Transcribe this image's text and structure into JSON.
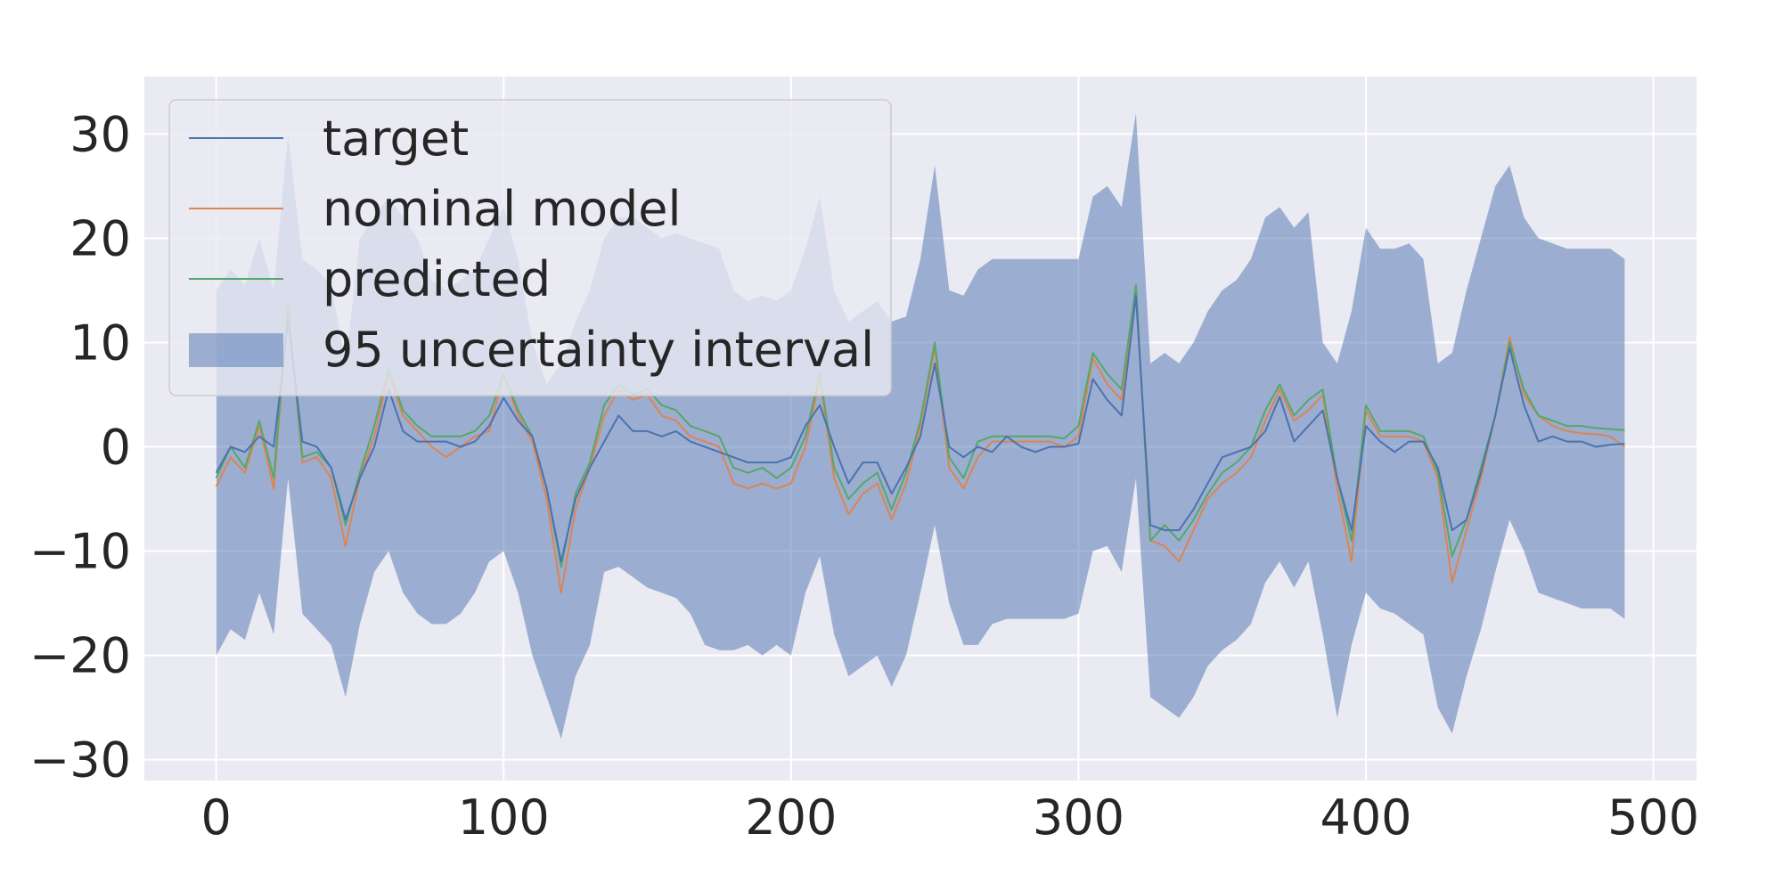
{
  "chart_data": {
    "type": "line",
    "title": "",
    "xlabel": "",
    "ylabel": "",
    "xlim": [
      -25,
      515
    ],
    "ylim": [
      -32,
      35.5
    ],
    "xticks": [
      0,
      100,
      200,
      300,
      400,
      500
    ],
    "yticks": [
      30,
      20,
      10,
      0,
      -10,
      -20,
      -30
    ],
    "xtick_labels": [
      "0",
      "100",
      "200",
      "300",
      "400",
      "500"
    ],
    "ytick_labels": [
      "30",
      "20",
      "10",
      "0",
      "−10",
      "−20",
      "−30"
    ],
    "grid": true,
    "legend_position": "upper-left",
    "colors": {
      "background": "#eaeaf2",
      "grid": "#ffffff",
      "target": "#4c72b0",
      "nominal": "#dd8452",
      "predicted": "#55a868",
      "band": "#4c72b0"
    },
    "x": [
      0,
      5,
      10,
      15,
      20,
      25,
      30,
      35,
      40,
      45,
      50,
      55,
      60,
      65,
      70,
      75,
      80,
      85,
      90,
      95,
      100,
      105,
      110,
      115,
      120,
      125,
      130,
      135,
      140,
      145,
      150,
      155,
      160,
      165,
      170,
      175,
      180,
      185,
      190,
      195,
      200,
      205,
      210,
      215,
      220,
      225,
      230,
      235,
      240,
      245,
      250,
      255,
      260,
      265,
      270,
      275,
      280,
      285,
      290,
      295,
      300,
      305,
      310,
      315,
      320,
      325,
      330,
      335,
      340,
      345,
      350,
      355,
      360,
      365,
      370,
      375,
      380,
      385,
      390,
      395,
      400,
      405,
      410,
      415,
      420,
      425,
      430,
      435,
      440,
      445,
      450,
      455,
      460,
      465,
      470,
      475,
      480,
      485,
      490
    ],
    "series": [
      {
        "name": "target",
        "values": [
          -2.5,
          0,
          -0.5,
          1,
          0,
          12,
          0.5,
          0,
          -2,
          -7,
          -3,
          0,
          5.5,
          1.5,
          0.5,
          0.5,
          0.5,
          0,
          0.5,
          2,
          4.7,
          2.5,
          1,
          -4,
          -11,
          -5,
          -2,
          0.5,
          3,
          1.5,
          1.5,
          1,
          1.5,
          0.5,
          0,
          -0.5,
          -1,
          -1.5,
          -1.5,
          -1.5,
          -1,
          2,
          4,
          0,
          -3.5,
          -1.5,
          -1.5,
          -4.5,
          -2,
          1,
          8,
          0,
          -1,
          0,
          -0.5,
          1,
          0,
          -0.5,
          0,
          0,
          0.3,
          6.5,
          4.5,
          3,
          14.5,
          -7.5,
          -8,
          -8,
          -6,
          -3.5,
          -1,
          -0.5,
          0,
          1.5,
          4.8,
          0.5,
          2,
          3.5,
          -3,
          -8,
          2,
          0.5,
          -0.5,
          0.5,
          0.5,
          -2,
          -8,
          -7,
          -2.5,
          3,
          9.5,
          4,
          0.5,
          1,
          0.5,
          0.5,
          0,
          0.2,
          0.3
        ],
        "upper": [
          15,
          17,
          15.5,
          20,
          15,
          30,
          18,
          17,
          15.5,
          8,
          20,
          22,
          24,
          22,
          20,
          16,
          15,
          16,
          17,
          20,
          23,
          18,
          10,
          6,
          8,
          12,
          15,
          20,
          22,
          22,
          21,
          20,
          20.5,
          20,
          19.5,
          19,
          15,
          14,
          14.5,
          14,
          15,
          19,
          24,
          15,
          12,
          13,
          14,
          12,
          12.5,
          18,
          27,
          15,
          14.5,
          17,
          18,
          18,
          18,
          18,
          18,
          18,
          18,
          24,
          25,
          23,
          32,
          8,
          9,
          8,
          10,
          13,
          15,
          16,
          18,
          22,
          23,
          21,
          22.5,
          10,
          8,
          13,
          21,
          19,
          19,
          19.5,
          18,
          8,
          9,
          15,
          20,
          25,
          27,
          22,
          20,
          19.5,
          19,
          19,
          19,
          19,
          18
        ],
        "lower": [
          -20,
          -17.5,
          -18.5,
          -14,
          -18,
          -3,
          -16,
          -17.5,
          -19,
          -24,
          -17,
          -12,
          -10,
          -14,
          -16,
          -17,
          -17,
          -16,
          -14,
          -11,
          -10,
          -14,
          -20,
          -24,
          -28,
          -22,
          -19,
          -12,
          -11.5,
          -12.5,
          -13.5,
          -14,
          -14.5,
          -16,
          -19,
          -19.5,
          -19.5,
          -19,
          -20,
          -19,
          -20,
          -14,
          -10.5,
          -18,
          -22,
          -21,
          -20,
          -23,
          -20,
          -14,
          -7.5,
          -15,
          -19,
          -19,
          -17,
          -16.5,
          -16.5,
          -16.5,
          -16.5,
          -16.5,
          -16,
          -10,
          -9.5,
          -12,
          -3,
          -24,
          -25,
          -26,
          -24,
          -21,
          -19.5,
          -18.5,
          -17,
          -13,
          -11,
          -13.5,
          -11,
          -18,
          -26,
          -19,
          -14,
          -15.5,
          -16,
          -17,
          -18,
          -25,
          -27.5,
          -22,
          -17.5,
          -12,
          -7,
          -10,
          -14,
          -14.5,
          -15,
          -15.5,
          -15.5,
          -15.5,
          -16.5
        ]
      },
      {
        "name": "nominal model",
        "values": [
          -3.8,
          -1,
          -2.5,
          2,
          -4,
          13.5,
          -1.5,
          -1,
          -3,
          -9.5,
          -3,
          1,
          7,
          3,
          1.5,
          0,
          -1,
          0,
          1,
          1.5,
          7,
          3,
          0.5,
          -5,
          -14,
          -6,
          -2,
          3,
          5.5,
          4.5,
          5,
          3,
          2.5,
          1,
          0.5,
          0,
          -3.5,
          -4,
          -3.5,
          -4,
          -3.5,
          0,
          6.5,
          -3,
          -6.5,
          -4.5,
          -3.5,
          -7,
          -3.5,
          2,
          9.5,
          -2,
          -4,
          -1,
          0.5,
          0.5,
          0.5,
          0.5,
          0.5,
          0,
          1,
          8.5,
          6,
          4.5,
          15.5,
          -9,
          -9.5,
          -11,
          -8,
          -5,
          -3.5,
          -2.5,
          -1,
          2.5,
          5.5,
          2.5,
          3.5,
          5,
          -4,
          -11,
          3.5,
          1,
          1,
          1,
          0.5,
          -3,
          -13,
          -8,
          -3,
          3,
          10.5,
          5,
          3,
          2,
          1.5,
          1.3,
          1.2,
          1,
          0
        ]
      },
      {
        "name": "predicted",
        "values": [
          -3,
          0,
          -2,
          2.5,
          -3,
          13.5,
          -1,
          -0.5,
          -2,
          -7.5,
          -2.5,
          2,
          7.5,
          3.5,
          2,
          1,
          1,
          1,
          1.5,
          3,
          7,
          3.5,
          1,
          -4,
          -11.5,
          -4.5,
          -1.5,
          4,
          6,
          5,
          5.5,
          4,
          3.5,
          2,
          1.5,
          1,
          -2,
          -2.5,
          -2,
          -3,
          -2,
          1,
          7,
          -2,
          -5,
          -3.5,
          -2.5,
          -6,
          -2.5,
          2.5,
          10,
          -1,
          -3,
          0.5,
          1,
          1,
          1,
          1,
          1,
          0.8,
          2,
          9,
          7,
          5.5,
          15.5,
          -9,
          -7.5,
          -9,
          -7,
          -4.5,
          -2.5,
          -1.5,
          0,
          3.5,
          6,
          3,
          4.5,
          5.5,
          -3,
          -9,
          4,
          1.5,
          1.5,
          1.5,
          1,
          -2.5,
          -10.5,
          -7,
          -2,
          3,
          10,
          5.5,
          3,
          2.5,
          2,
          2,
          1.8,
          1.7,
          1.6
        ]
      }
    ],
    "legend": [
      {
        "label": "target",
        "kind": "line",
        "color": "#4c72b0"
      },
      {
        "label": "nominal model",
        "kind": "line",
        "color": "#dd8452"
      },
      {
        "label": "predicted",
        "kind": "line",
        "color": "#55a868"
      },
      {
        "label": "95 uncertainty interval",
        "kind": "patch",
        "color": "#4c72b0"
      }
    ]
  }
}
